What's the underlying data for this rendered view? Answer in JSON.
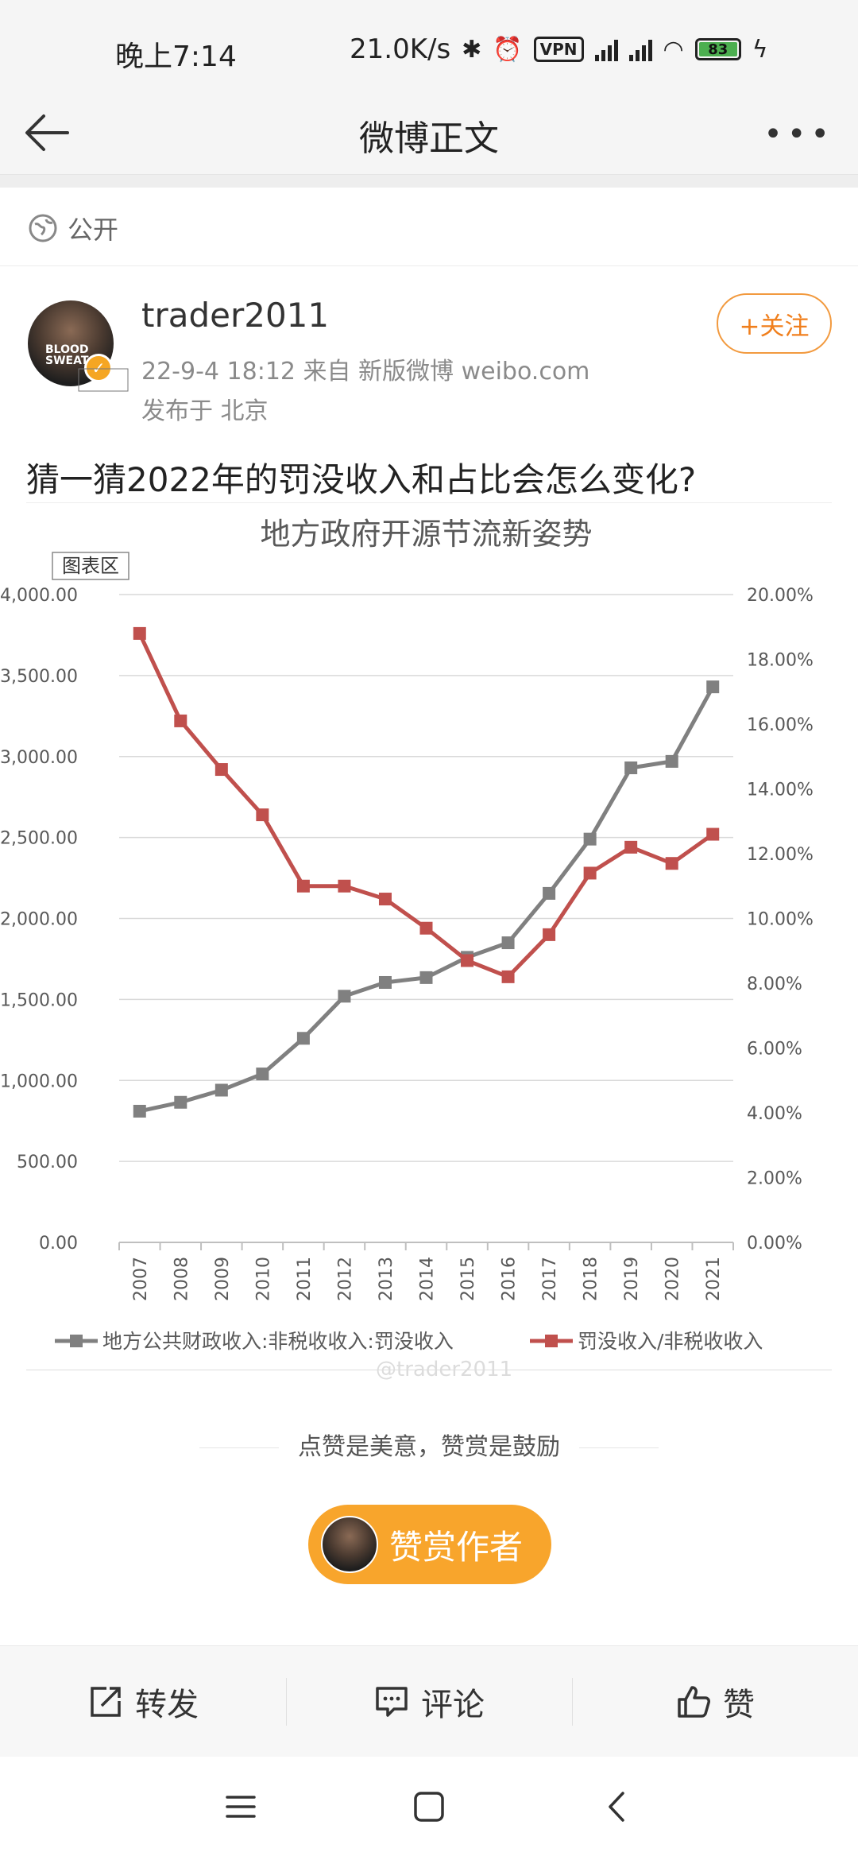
{
  "status_bar": {
    "time": "晚上7:14",
    "speed": "21.0K/s",
    "vpn": "VPN",
    "battery": "83"
  },
  "nav": {
    "title": "微博正文",
    "back_icon": "back-arrow-icon",
    "more_icon": "more-dots-icon"
  },
  "visibility": {
    "label": "公开"
  },
  "post": {
    "username": "trader2011",
    "meta": "22-9-4 18:12   来自 新版微博 weibo.com",
    "location": "发布于 北京",
    "follow_label": "+关注",
    "text": "猜一猜2022年的罚没收入和占比会怎么变化?"
  },
  "chart_data": {
    "type": "line",
    "title": "地方政府开源节流新姿势",
    "area_label": "图表区",
    "watermark": "@trader2011",
    "categories": [
      "2007",
      "2008",
      "2009",
      "2010",
      "2011",
      "2012",
      "2013",
      "2014",
      "2015",
      "2016",
      "2017",
      "2018",
      "2019",
      "2020",
      "2021"
    ],
    "y_left_ticks": [
      "4,000.00",
      "3,500.00",
      "3,000.00",
      "2,500.00",
      "2,000.00",
      "1,500.00",
      "1,000.00",
      "500.00",
      "0.00"
    ],
    "y_right_ticks": [
      "20.00%",
      "18.00%",
      "16.00%",
      "14.00%",
      "12.00%",
      "10.00%",
      "8.00%",
      "6.00%",
      "4.00%",
      "2.00%",
      "0.00%"
    ],
    "ylim_left": [
      0,
      4000
    ],
    "ylim_right": [
      0,
      20
    ],
    "grid": true,
    "legend_position": "bottom",
    "series": [
      {
        "name": "地方公共财政收入:非税收收入:罚没收入",
        "axis": "left",
        "color": "#808080",
        "values": [
          810,
          865,
          940,
          1040,
          1260,
          1520,
          1605,
          1635,
          1760,
          1850,
          2155,
          2490,
          2930,
          2970,
          3430
        ]
      },
      {
        "name": "罚没收入/非税收收入",
        "axis": "right",
        "color": "#c0504d",
        "values": [
          18.8,
          16.1,
          14.6,
          13.2,
          11.0,
          11.0,
          10.6,
          9.7,
          8.7,
          8.2,
          9.5,
          11.4,
          12.2,
          11.7,
          12.6
        ]
      }
    ]
  },
  "reward": {
    "line": "点赞是美意，赞赏是鼓励",
    "button": "赞赏作者"
  },
  "actions": {
    "repost": "转发",
    "comment": "评论",
    "like": "赞"
  }
}
